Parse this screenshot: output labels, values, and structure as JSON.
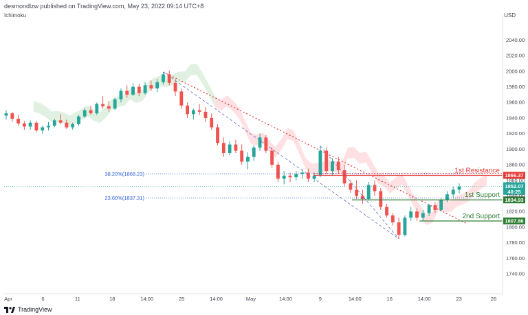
{
  "header": {
    "publisher_line": "desmondlzw published on TradingView.com, May 23, 2022 09:14 UTC+8",
    "indicator": "Ichimoku",
    "currency": "USD"
  },
  "footer": {
    "brand": "TradingView"
  },
  "colors": {
    "up": "#26a69a",
    "down": "#ef5350",
    "resistance": "#e53935",
    "support": "#2e7d32",
    "fib": "#2a5bd7",
    "price_tag": "#26a69a"
  },
  "chart_data": {
    "type": "candlestick",
    "ylim": [
      1718,
      2065
    ],
    "y_ticks": [
      1740,
      1760,
      1780,
      1800,
      1820,
      1840,
      1860,
      1880,
      1900,
      1920,
      1940,
      1960,
      1980,
      2000,
      2020,
      2040
    ],
    "x_ticks": [
      "Apr",
      "6",
      "11",
      "18",
      "14:00",
      "25",
      "14:00",
      "May",
      "14:00",
      "9",
      "14:00",
      "16",
      "14:00",
      "23",
      "26"
    ],
    "candles": [
      [
        1943,
        1950,
        1938,
        1946
      ],
      [
        1946,
        1948,
        1935,
        1939
      ],
      [
        1939,
        1944,
        1930,
        1933
      ],
      [
        1933,
        1936,
        1925,
        1929
      ],
      [
        1929,
        1937,
        1925,
        1934
      ],
      [
        1934,
        1936,
        1922,
        1924
      ],
      [
        1924,
        1930,
        1920,
        1928
      ],
      [
        1928,
        1935,
        1924,
        1930
      ],
      [
        1930,
        1939,
        1928,
        1937
      ],
      [
        1937,
        1945,
        1932,
        1934
      ],
      [
        1934,
        1938,
        1926,
        1928
      ],
      [
        1928,
        1934,
        1925,
        1932
      ],
      [
        1932,
        1944,
        1930,
        1942
      ],
      [
        1942,
        1953,
        1940,
        1950
      ],
      [
        1950,
        1956,
        1944,
        1946
      ],
      [
        1946,
        1960,
        1944,
        1958
      ],
      [
        1958,
        1968,
        1952,
        1955
      ],
      [
        1955,
        1962,
        1948,
        1952
      ],
      [
        1952,
        1966,
        1950,
        1964
      ],
      [
        1964,
        1978,
        1960,
        1975
      ],
      [
        1975,
        1982,
        1966,
        1970
      ],
      [
        1970,
        1985,
        1968,
        1980
      ],
      [
        1980,
        1984,
        1968,
        1972
      ],
      [
        1972,
        1986,
        1970,
        1982
      ],
      [
        1982,
        1988,
        1975,
        1978
      ],
      [
        1978,
        1990,
        1973,
        1986
      ],
      [
        1986,
        1999,
        1983,
        1996
      ],
      [
        1996,
        2001,
        1982,
        1985
      ],
      [
        1985,
        1990,
        1968,
        1974
      ],
      [
        1974,
        1978,
        1952,
        1956
      ],
      [
        1956,
        1960,
        1940,
        1945
      ],
      [
        1945,
        1952,
        1938,
        1950
      ],
      [
        1950,
        1958,
        1944,
        1948
      ],
      [
        1948,
        1954,
        1935,
        1940
      ],
      [
        1940,
        1946,
        1925,
        1928
      ],
      [
        1928,
        1932,
        1905,
        1908
      ],
      [
        1908,
        1915,
        1890,
        1895
      ],
      [
        1895,
        1910,
        1892,
        1906
      ],
      [
        1906,
        1912,
        1895,
        1898
      ],
      [
        1898,
        1906,
        1880,
        1884
      ],
      [
        1884,
        1896,
        1874,
        1890
      ],
      [
        1890,
        1905,
        1885,
        1902
      ],
      [
        1902,
        1920,
        1898,
        1915
      ],
      [
        1915,
        1918,
        1895,
        1898
      ],
      [
        1898,
        1902,
        1876,
        1880
      ],
      [
        1880,
        1884,
        1858,
        1862
      ],
      [
        1862,
        1872,
        1855,
        1866
      ],
      [
        1866,
        1870,
        1858,
        1864
      ],
      [
        1864,
        1872,
        1860,
        1868
      ],
      [
        1868,
        1874,
        1862,
        1870
      ],
      [
        1870,
        1875,
        1858,
        1862
      ],
      [
        1862,
        1870,
        1858,
        1866
      ],
      [
        1866,
        1904,
        1864,
        1898
      ],
      [
        1898,
        1902,
        1868,
        1872
      ],
      [
        1872,
        1888,
        1866,
        1884
      ],
      [
        1884,
        1890,
        1868,
        1873
      ],
      [
        1873,
        1880,
        1852,
        1856
      ],
      [
        1856,
        1860,
        1844,
        1848
      ],
      [
        1848,
        1860,
        1836,
        1840
      ],
      [
        1840,
        1848,
        1830,
        1836
      ],
      [
        1836,
        1858,
        1834,
        1854
      ],
      [
        1854,
        1860,
        1840,
        1846
      ],
      [
        1846,
        1850,
        1822,
        1826
      ],
      [
        1826,
        1830,
        1812,
        1815
      ],
      [
        1815,
        1818,
        1802,
        1806
      ],
      [
        1806,
        1812,
        1785,
        1790
      ],
      [
        1790,
        1815,
        1788,
        1812
      ],
      [
        1812,
        1826,
        1808,
        1820
      ],
      [
        1820,
        1824,
        1808,
        1812
      ],
      [
        1812,
        1822,
        1808,
        1818
      ],
      [
        1818,
        1830,
        1814,
        1828
      ],
      [
        1828,
        1832,
        1818,
        1822
      ],
      [
        1822,
        1838,
        1820,
        1835
      ],
      [
        1835,
        1846,
        1832,
        1842
      ],
      [
        1842,
        1852,
        1838,
        1848
      ],
      [
        1848,
        1856,
        1843,
        1852
      ]
    ],
    "fib_levels": [
      {
        "label": "38.20%(1868.23)",
        "value": 1868.23
      },
      {
        "label": "23.60%(1837.31)",
        "value": 1837.31
      }
    ],
    "levels": [
      {
        "name": "1st Resistance",
        "value": 1866.37,
        "role": "resistance"
      },
      {
        "name": "1st Support",
        "value": 1834.93,
        "role": "support"
      },
      {
        "name": "2nd Support",
        "value": 1807.86,
        "role": "support"
      }
    ],
    "current_price": {
      "value": 1852.07,
      "label": "1852.07",
      "timer": "40:25"
    },
    "grid": false
  }
}
